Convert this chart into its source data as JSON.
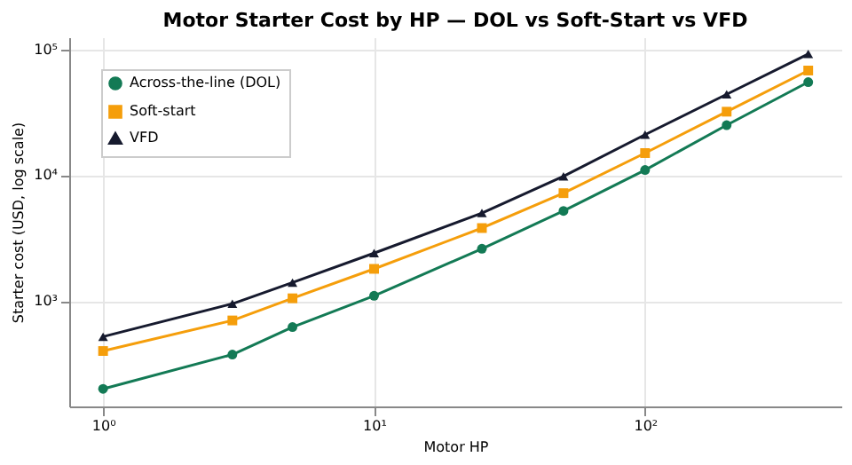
{
  "chart_data": {
    "type": "line",
    "title": "Motor Starter Cost by HP — DOL vs Soft-Start vs VFD",
    "xlabel": "Motor HP",
    "ylabel": "Starter cost (USD, log scale)",
    "x": [
      1,
      3,
      5,
      10,
      25,
      50,
      100,
      200,
      400
    ],
    "series": [
      {
        "name": "Across-the-line (DOL)",
        "color": "#137a55",
        "marker": "circle",
        "values": [
          200,
          375,
          620,
          1100,
          2600,
          5200,
          11000,
          25000,
          55000
        ]
      },
      {
        "name": "Soft-start",
        "color": "#f59e0b",
        "marker": "square",
        "values": [
          400,
          700,
          1050,
          1800,
          3800,
          7200,
          15000,
          32000,
          68000
        ]
      },
      {
        "name": "VFD",
        "color": "#161a2e",
        "marker": "triangle",
        "values": [
          520,
          950,
          1400,
          2400,
          5000,
          9800,
          21000,
          44000,
          92000
        ]
      }
    ],
    "log": "xy",
    "xlim": [
      0.75,
      530
    ],
    "ylim": [
      145,
      125000
    ],
    "xticks": [
      {
        "value": 1,
        "label": "10⁰"
      },
      {
        "value": 10,
        "label": "10¹"
      },
      {
        "value": 100,
        "label": "10²"
      }
    ],
    "yticks": [
      {
        "value": 1000,
        "label": "10³"
      },
      {
        "value": 10000,
        "label": "10⁴"
      },
      {
        "value": 100000,
        "label": "10⁵"
      }
    ],
    "grid": true,
    "legend": "top left",
    "line_style": "solid"
  }
}
